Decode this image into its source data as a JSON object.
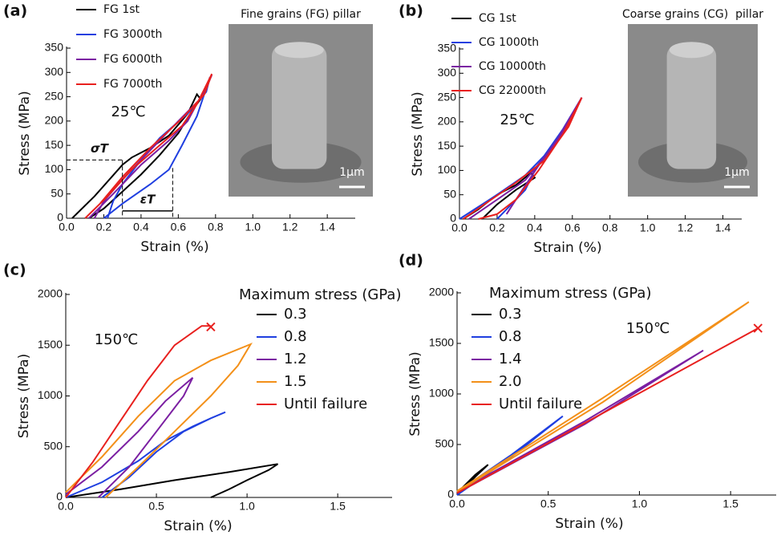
{
  "chart_data": [
    {
      "type": "line",
      "panel_label": "(a)",
      "x_label": "Strain (%)",
      "y_label": "Stress (MPa)",
      "temperature": "25℃",
      "inset_title": "Fine grains (FG) pillar",
      "scale_bar": "1μm",
      "xlim": [
        0,
        1.55
      ],
      "ylim": [
        0,
        350
      ],
      "xticks": [
        {
          "value": 0,
          "label": "0.0"
        },
        0.2,
        0.4,
        0.6,
        0.8,
        {
          "value": 1,
          "label": "1.0"
        },
        1.2,
        1.4
      ],
      "yticks": [
        0,
        50,
        100,
        150,
        200,
        250,
        300,
        350
      ],
      "stress_threshold": {
        "label": "σT",
        "value": 120,
        "strain": 0.3
      },
      "strain_range": {
        "label": "εT",
        "from": 0.3,
        "to": 0.57,
        "stress": 15
      },
      "series": [
        {
          "name": "FG 1st",
          "color": "#000000",
          "x": [
            0.03,
            0.15,
            0.3,
            0.35,
            0.45,
            0.55,
            0.65,
            0.7,
            0.72,
            0.68,
            0.6,
            0.5,
            0.4,
            0.3,
            0.2,
            0.12
          ],
          "values": [
            0,
            45,
            110,
            125,
            145,
            170,
            215,
            255,
            245,
            225,
            175,
            130,
            90,
            55,
            20,
            0
          ]
        },
        {
          "name": "FG 3000th",
          "color": "#1f3fe0",
          "x": [
            0.2,
            0.3,
            0.45,
            0.55,
            0.62,
            0.7,
            0.77,
            0.75,
            0.65,
            0.5,
            0.4,
            0.3,
            0.25,
            0.22
          ],
          "values": [
            0,
            30,
            70,
            100,
            150,
            210,
            290,
            260,
            215,
            165,
            120,
            70,
            35,
            0
          ]
        },
        {
          "name": "FG 6000th",
          "color": "#7b1fa2",
          "x": [
            0.12,
            0.25,
            0.4,
            0.55,
            0.65,
            0.72,
            0.78,
            0.73,
            0.6,
            0.45,
            0.3,
            0.2,
            0.15
          ],
          "values": [
            0,
            50,
            110,
            160,
            200,
            250,
            295,
            250,
            200,
            140,
            80,
            35,
            0
          ]
        },
        {
          "name": "FG 7000th",
          "color": "#e8201e",
          "x": [
            0.1,
            0.22,
            0.35,
            0.5,
            0.62,
            0.7,
            0.78,
            0.74,
            0.62,
            0.45,
            0.3,
            0.18,
            0.1
          ],
          "values": [
            0,
            45,
            100,
            150,
            190,
            235,
            297,
            255,
            205,
            145,
            85,
            30,
            0
          ]
        }
      ]
    },
    {
      "type": "line",
      "panel_label": "(b)",
      "x_label": "Strain (%)",
      "y_label": "Stress (MPa)",
      "temperature": "25℃",
      "inset_title": "Coarse grains (CG)  pillar",
      "scale_bar": "1μm",
      "xlim": [
        0,
        1.5
      ],
      "ylim": [
        0,
        350
      ],
      "xticks": [
        {
          "value": 0,
          "label": "0.0"
        },
        0.2,
        0.4,
        0.6,
        0.8,
        {
          "value": 1,
          "label": "1.0"
        },
        1.2,
        1.4
      ],
      "yticks": [
        0,
        50,
        100,
        150,
        200,
        250,
        300,
        350
      ],
      "series": [
        {
          "name": "CG 1st",
          "color": "#000000",
          "x": [
            0.02,
            0.1,
            0.2,
            0.3,
            0.38,
            0.4,
            0.3,
            0.2,
            0.12
          ],
          "values": [
            0,
            20,
            50,
            70,
            95,
            85,
            60,
            30,
            0
          ]
        },
        {
          "name": "CG 1000th",
          "color": "#1f3fe0",
          "x": [
            0,
            0.1,
            0.2,
            0.35,
            0.45,
            0.55,
            0.65,
            0.6,
            0.5,
            0.4,
            0.35,
            0.25,
            0.2
          ],
          "values": [
            0,
            25,
            50,
            90,
            130,
            185,
            250,
            210,
            150,
            100,
            60,
            20,
            0
          ]
        },
        {
          "name": "CG 10000th",
          "color": "#7b1fa2",
          "x": [
            0.05,
            0.2,
            0.35,
            0.5,
            0.65,
            0.55,
            0.42,
            0.3,
            0.25
          ],
          "values": [
            0,
            40,
            80,
            150,
            250,
            180,
            110,
            40,
            10
          ]
        },
        {
          "name": "CG 22000th",
          "color": "#e8201e",
          "x": [
            0.02,
            0.15,
            0.3,
            0.45,
            0.58,
            0.65,
            0.55,
            0.42,
            0.3,
            0.2,
            0.1
          ],
          "values": [
            0,
            35,
            75,
            120,
            190,
            250,
            175,
            100,
            40,
            10,
            0
          ]
        }
      ]
    },
    {
      "type": "line",
      "panel_label": "(c)",
      "x_label": "Strain (%)",
      "y_label": "Stress (MPa)",
      "temperature": "150℃",
      "legend_title": "Maximum stress (GPa)",
      "xlim": [
        0,
        1.8
      ],
      "ylim": [
        0,
        2000
      ],
      "xticks": [
        {
          "value": 0,
          "label": "0.0"
        },
        0.5,
        {
          "value": 1,
          "label": "1.0"
        },
        1.5
      ],
      "yticks": [
        0,
        500,
        1000,
        1500,
        2000
      ],
      "failure_point": {
        "x": 0.8,
        "y": 1680,
        "color": "#e8201e"
      },
      "series": [
        {
          "name": "0.3",
          "color": "#000000",
          "x": [
            0,
            0.3,
            0.6,
            0.9,
            1.17,
            1.12,
            1.0,
            0.9,
            0.8
          ],
          "values": [
            0,
            80,
            170,
            250,
            330,
            270,
            170,
            80,
            0
          ]
        },
        {
          "name": "0.8",
          "color": "#1f3fe0",
          "x": [
            0,
            0.2,
            0.4,
            0.55,
            0.7,
            0.8,
            0.88,
            0.8,
            0.65,
            0.5,
            0.35,
            0.2
          ],
          "values": [
            0,
            150,
            360,
            560,
            700,
            780,
            840,
            780,
            650,
            450,
            200,
            0
          ]
        },
        {
          "name": "1.2",
          "color": "#7b1fa2",
          "x": [
            0,
            0.2,
            0.4,
            0.55,
            0.7,
            0.65,
            0.5,
            0.35,
            0.18
          ],
          "values": [
            30,
            300,
            650,
            950,
            1180,
            1000,
            650,
            300,
            0
          ]
        },
        {
          "name": "1.5",
          "color": "#f39019",
          "x": [
            0,
            0.2,
            0.4,
            0.6,
            0.8,
            1.02,
            0.95,
            0.8,
            0.6,
            0.4,
            0.22
          ],
          "values": [
            50,
            400,
            800,
            1150,
            1350,
            1510,
            1300,
            1000,
            650,
            300,
            0
          ]
        },
        {
          "name": "Until failure",
          "color": "#e8201e",
          "x": [
            0,
            0.15,
            0.3,
            0.45,
            0.6,
            0.75,
            0.8
          ],
          "values": [
            0,
            350,
            750,
            1150,
            1500,
            1690,
            1690
          ]
        }
      ]
    },
    {
      "type": "line",
      "panel_label": "(d)",
      "x_label": "Strain (%)",
      "y_label": "Stress (MPa)",
      "temperature": "150℃",
      "legend_title": "Maximum stress (GPa)",
      "xlim": [
        0,
        1.75
      ],
      "ylim": [
        0,
        2000
      ],
      "xticks": [
        {
          "value": 0,
          "label": "0.0"
        },
        0.5,
        {
          "value": 1,
          "label": "1.0"
        },
        1.5
      ],
      "yticks": [
        0,
        500,
        1000,
        1500,
        2000
      ],
      "failure_point": {
        "x": 1.65,
        "y": 1650,
        "color": "#e8201e"
      },
      "series": [
        {
          "name": "0.3",
          "color": "#000000",
          "x": [
            0,
            0.1,
            0.17,
            0.1,
            0
          ],
          "values": [
            20,
            200,
            300,
            180,
            0
          ]
        },
        {
          "name": "0.8",
          "color": "#1f3fe0",
          "x": [
            0,
            0.3,
            0.58,
            0.3,
            0
          ],
          "values": [
            30,
            400,
            780,
            380,
            0
          ]
        },
        {
          "name": "1.4",
          "color": "#7b1fa2",
          "x": [
            0,
            0.7,
            1.35,
            0.7,
            0
          ],
          "values": [
            30,
            730,
            1430,
            700,
            20
          ]
        },
        {
          "name": "2.0",
          "color": "#f39019",
          "x": [
            0,
            0.8,
            1.6,
            0.8,
            0
          ],
          "values": [
            40,
            960,
            1910,
            920,
            30
          ]
        },
        {
          "name": "Until failure",
          "color": "#e8201e",
          "x": [
            0,
            0.8,
            1.65
          ],
          "values": [
            20,
            810,
            1650
          ]
        }
      ]
    }
  ]
}
